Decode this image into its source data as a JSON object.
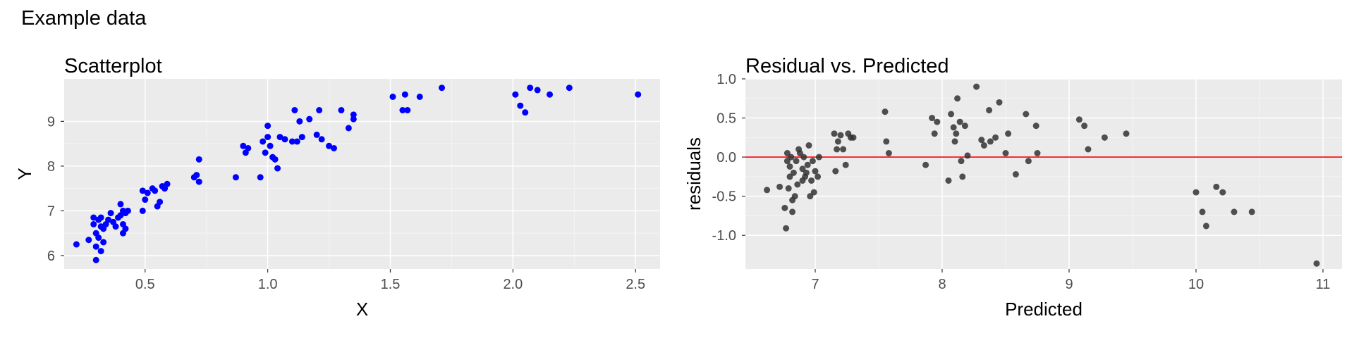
{
  "figure_title": "Example data",
  "chart_data": [
    {
      "type": "scatter",
      "title": "Scatterplot",
      "xlabel": "X",
      "ylabel": "Y",
      "xlim": [
        0.17,
        2.6
      ],
      "ylim": [
        5.7,
        9.95
      ],
      "xticks": [
        0.5,
        1.0,
        1.5,
        2.0,
        2.5
      ],
      "xtick_labels": [
        "0.5",
        "1.0",
        "1.5",
        "2.0",
        "2.5"
      ],
      "yticks": [
        6,
        7,
        8,
        9
      ],
      "ytick_labels": [
        "6",
        "7",
        "8",
        "9"
      ],
      "point_color": "#0000ff",
      "grid": true,
      "panel_background": "#ebebeb",
      "series": [
        {
          "x": [
            0.22,
            0.27,
            0.29,
            0.29,
            0.3,
            0.3,
            0.3,
            0.31,
            0.31,
            0.32,
            0.32,
            0.32,
            0.33,
            0.33,
            0.34,
            0.35,
            0.36,
            0.37,
            0.38,
            0.39,
            0.4,
            0.4,
            0.41,
            0.41,
            0.41,
            0.42,
            0.42,
            0.43,
            0.49,
            0.49,
            0.5,
            0.51,
            0.53,
            0.54,
            0.55,
            0.56,
            0.57,
            0.58,
            0.59,
            0.7,
            0.71,
            0.72,
            0.72,
            0.87,
            0.9,
            0.91,
            0.92,
            0.97,
            0.98,
            0.99,
            1.0,
            1.0,
            1.01,
            1.02,
            1.03,
            1.04,
            1.05,
            1.07,
            1.1,
            1.11,
            1.12,
            1.13,
            1.14,
            1.17,
            1.2,
            1.21,
            1.22,
            1.25,
            1.27,
            1.3,
            1.33,
            1.35,
            1.35,
            1.51,
            1.55,
            1.56,
            1.57,
            1.62,
            1.71,
            2.01,
            2.03,
            2.05,
            2.07,
            2.1,
            2.15,
            2.23,
            2.51
          ],
          "y": [
            6.25,
            6.35,
            6.85,
            6.7,
            6.5,
            6.2,
            5.9,
            6.8,
            6.4,
            6.65,
            6.1,
            6.85,
            6.6,
            6.3,
            6.7,
            6.8,
            6.95,
            6.75,
            6.65,
            6.85,
            7.15,
            6.9,
            7.0,
            6.7,
            6.5,
            6.95,
            6.6,
            7.0,
            7.45,
            7.0,
            7.25,
            7.4,
            7.5,
            7.45,
            7.1,
            7.2,
            7.55,
            7.5,
            7.6,
            7.75,
            7.8,
            7.65,
            8.15,
            7.75,
            8.45,
            8.3,
            8.4,
            7.75,
            8.55,
            8.3,
            8.65,
            8.9,
            8.45,
            8.2,
            8.15,
            7.95,
            8.65,
            8.6,
            8.55,
            9.25,
            8.55,
            9.0,
            8.65,
            9.05,
            8.7,
            9.25,
            8.6,
            8.45,
            8.4,
            9.25,
            8.85,
            9.15,
            9.05,
            9.55,
            9.25,
            9.6,
            9.25,
            9.55,
            9.75,
            9.6,
            9.35,
            9.2,
            9.75,
            9.7,
            9.6,
            9.75,
            9.6
          ]
        }
      ]
    },
    {
      "type": "scatter",
      "title": "Residual vs. Predicted",
      "xlabel": "Predicted",
      "ylabel": "residuals",
      "xlim": [
        6.45,
        11.15
      ],
      "ylim": [
        -1.43,
        1.0
      ],
      "xticks": [
        7,
        8,
        9,
        10,
        11
      ],
      "xtick_labels": [
        "7",
        "8",
        "9",
        "10",
        "11"
      ],
      "yticks": [
        1.0,
        0.5,
        0.0,
        -0.5,
        -1.0
      ],
      "ytick_labels": [
        "1.0",
        "0.5",
        "0.0",
        "-0.5",
        "-1.0"
      ],
      "point_color": "#333333",
      "point_opacity": 0.85,
      "reference_line": {
        "y": 0,
        "color": "#ff0000"
      },
      "grid": true,
      "panel_background": "#ebebeb",
      "series": [
        {
          "x": [
            6.62,
            6.72,
            6.76,
            6.77,
            6.78,
            6.78,
            6.79,
            6.8,
            6.8,
            6.81,
            6.82,
            6.82,
            6.83,
            6.84,
            6.85,
            6.86,
            6.87,
            6.88,
            6.9,
            6.9,
            6.91,
            6.92,
            6.93,
            6.94,
            6.95,
            6.96,
            6.97,
            6.98,
            6.99,
            7.0,
            7.02,
            7.03,
            7.15,
            7.16,
            7.17,
            7.18,
            7.2,
            7.22,
            7.24,
            7.26,
            7.28,
            7.3,
            7.55,
            7.56,
            7.58,
            7.87,
            7.92,
            7.94,
            7.96,
            8.05,
            8.07,
            8.09,
            8.1,
            8.11,
            8.12,
            8.14,
            8.15,
            8.16,
            8.18,
            8.2,
            8.27,
            8.31,
            8.33,
            8.37,
            8.38,
            8.42,
            8.45,
            8.5,
            8.52,
            8.58,
            8.66,
            8.68,
            8.74,
            8.75,
            9.08,
            9.12,
            9.15,
            9.28,
            9.45,
            10.0,
            10.05,
            10.08,
            10.16,
            10.21,
            10.3,
            10.44,
            10.95
          ],
          "y": [
            -0.42,
            -0.38,
            -0.65,
            -0.91,
            -0.05,
            0.05,
            -0.4,
            -0.12,
            -0.25,
            0.0,
            -0.55,
            -0.7,
            -0.2,
            -0.5,
            -0.05,
            -0.35,
            0.1,
            0.05,
            -0.3,
            -0.15,
            0.0,
            -0.25,
            -0.2,
            -0.1,
            0.15,
            -0.5,
            -0.3,
            -0.05,
            -0.45,
            -0.18,
            -0.25,
            0.0,
            0.3,
            -0.18,
            0.1,
            0.2,
            0.28,
            0.1,
            -0.1,
            0.3,
            0.25,
            0.25,
            0.58,
            0.2,
            0.05,
            -0.1,
            0.5,
            0.3,
            0.45,
            -0.3,
            0.55,
            0.38,
            0.2,
            0.3,
            0.75,
            0.45,
            -0.05,
            -0.25,
            0.4,
            0.02,
            0.9,
            0.22,
            0.15,
            0.6,
            0.2,
            0.25,
            0.7,
            0.05,
            0.3,
            -0.22,
            0.55,
            -0.05,
            0.4,
            0.05,
            0.48,
            0.4,
            0.1,
            0.25,
            0.3,
            -0.45,
            -0.7,
            -0.88,
            -0.38,
            -0.45,
            -0.7,
            -0.7,
            -1.36
          ]
        }
      ]
    }
  ]
}
